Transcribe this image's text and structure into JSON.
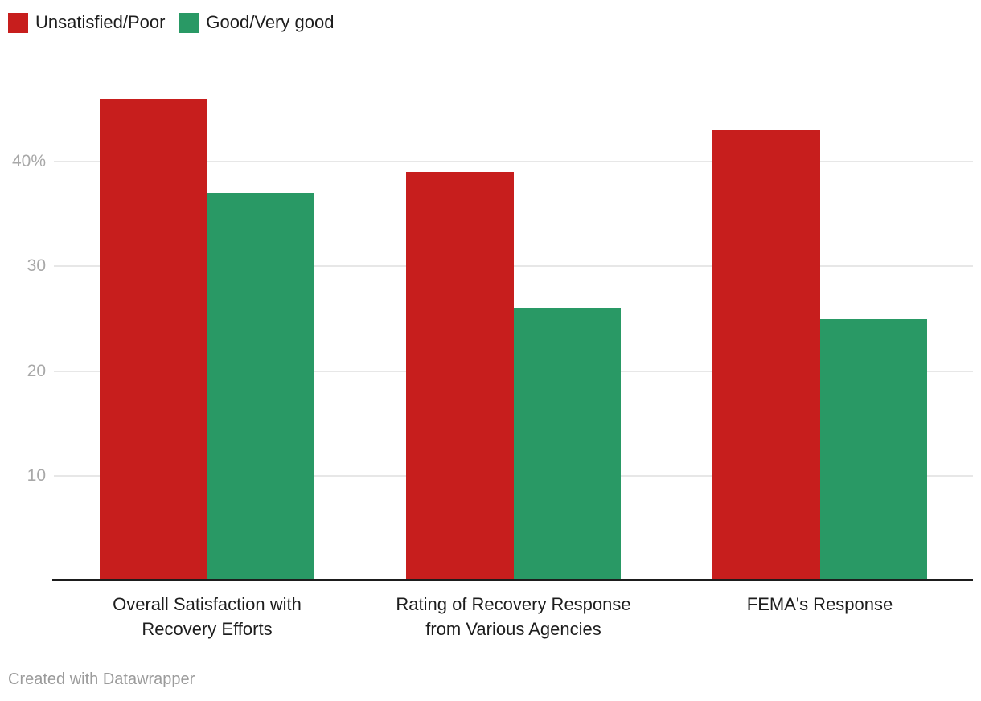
{
  "legend": {
    "items": [
      {
        "label": "Unsatisfied/Poor",
        "color": "#c71e1d"
      },
      {
        "label": "Good/Very good",
        "color": "#299965"
      }
    ]
  },
  "chart_data": {
    "type": "bar",
    "categories": [
      "Overall Satisfaction with Recovery Efforts",
      "Rating of Recovery Response from Various Agencies",
      "FEMA's Response"
    ],
    "series": [
      {
        "name": "Unsatisfied/Poor",
        "color": "#c71e1d",
        "values": [
          46,
          39,
          43
        ]
      },
      {
        "name": "Good/Very good",
        "color": "#299965",
        "values": [
          37,
          26,
          25
        ]
      }
    ],
    "title": "",
    "xlabel": "",
    "ylabel": "",
    "unit": "%",
    "ylim": [
      0,
      47
    ],
    "yticks": [
      {
        "value": 10,
        "label": "10"
      },
      {
        "value": 20,
        "label": "20"
      },
      {
        "value": 30,
        "label": "30"
      },
      {
        "value": 40,
        "label": "40%"
      }
    ],
    "grid": true,
    "legend_position": "top-left"
  },
  "footer": {
    "attribution": "Created with Datawrapper"
  },
  "colors": {
    "red": "#c71e1d",
    "green": "#299965",
    "gridline": "#e7e7e7",
    "axis_line": "#1d1d1d",
    "tick_label": "#a8a8a8",
    "category_label": "#1d1d1d",
    "footer_text": "#9b9b9b"
  }
}
